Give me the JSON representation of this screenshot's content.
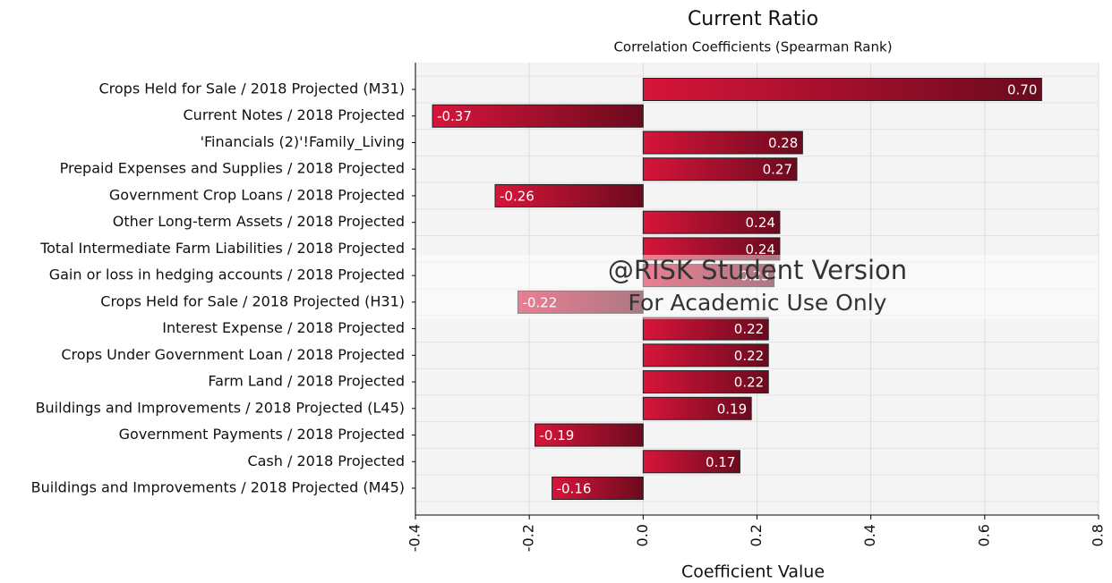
{
  "chart_data": {
    "type": "bar",
    "orientation": "horizontal",
    "title": "Current Ratio",
    "subtitle": "Correlation Coefficients (Spearman Rank)",
    "x_label": "Coefficient Value",
    "categories": [
      "Crops Held for Sale / 2018 Projected (M31)",
      "Current Notes / 2018 Projected",
      "'Financials (2)'!Family_Living",
      "Prepaid Expenses and Supplies / 2018 Projected",
      "Government Crop Loans / 2018 Projected",
      "Other Long-term Assets / 2018 Projected",
      "Total Intermediate Farm Liabilities / 2018 Projected",
      "Gain or loss in hedging accounts / 2018 Projected",
      "Crops Held for Sale / 2018 Projected (H31)",
      "Interest Expense / 2018 Projected",
      "Crops Under Government Loan / 2018 Projected",
      "Farm Land / 2018 Projected",
      "Buildings and Improvements / 2018 Projected (L45)",
      "Government Payments / 2018 Projected",
      "Cash / 2018 Projected",
      "Buildings and Improvements / 2018 Projected (M45)"
    ],
    "values": [
      0.7,
      -0.37,
      0.28,
      0.27,
      -0.26,
      0.24,
      0.24,
      0.23,
      -0.22,
      0.22,
      0.22,
      0.22,
      0.19,
      -0.19,
      0.17,
      -0.16
    ],
    "value_labels": [
      "0.70",
      "-0.37",
      "0.28",
      "0.27",
      "-0.26",
      "0.24",
      "0.24",
      "0.23",
      "-0.22",
      "0.22",
      "0.22",
      "0.22",
      "0.19",
      "-0.19",
      "0.17",
      "-0.16"
    ],
    "color": "#d7153a",
    "color_end": "#6b0a1e",
    "xlim": [
      -0.4,
      0.8
    ],
    "xticks": [
      -0.4,
      -0.2,
      {
        "value": 0,
        "label": "0.0"
      },
      0.2,
      0.4,
      0.6,
      0.8
    ],
    "grid": true,
    "watermark": [
      "@RISK Student Version",
      "For Academic Use Only"
    ]
  }
}
